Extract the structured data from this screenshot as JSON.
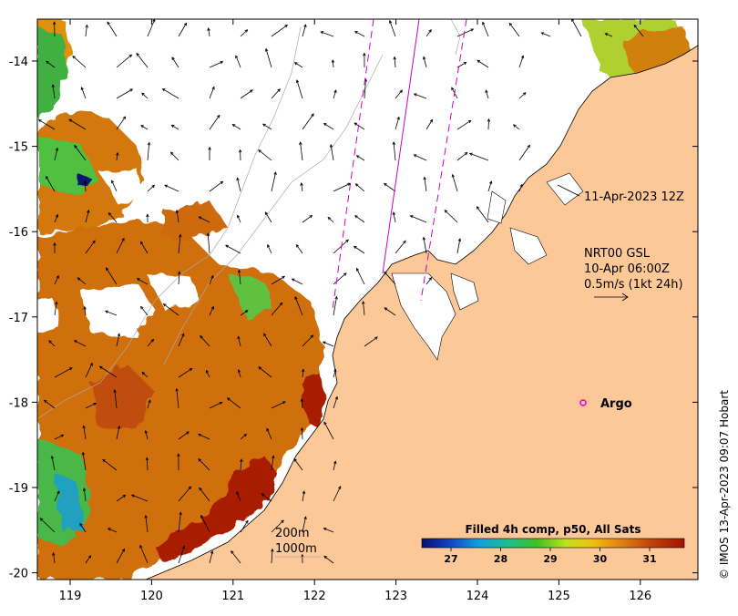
{
  "map": {
    "lon_ticks": [
      "119",
      "120",
      "121",
      "122",
      "123",
      "124",
      "125",
      "126"
    ],
    "lat_ticks": [
      "-14",
      "-15",
      "-16",
      "-17",
      "-18",
      "-19",
      "-20"
    ],
    "colors": {
      "land": "#fcc898",
      "ocean_nodata": "#ffffff",
      "sst_warm": "#c85a08",
      "sst_hot": "#a01e02",
      "sst_mid": "#e08a10",
      "sst_cool": "#3cb43c",
      "track": "#cc00cc"
    }
  },
  "annotations": {
    "timestamp": "11-Apr-2023 12Z",
    "current_title": "NRT00 GSL",
    "current_time": "10-Apr 06:00Z",
    "current_scale": "0.5m/s (1kt 24h)",
    "argo_label": "Argo",
    "isobath_200": "200m",
    "isobath_1000": "1000m"
  },
  "colorbar": {
    "title": "Filled 4h comp, p50, All Sats",
    "ticks": [
      "27",
      "28",
      "29",
      "30",
      "31"
    ],
    "stops": [
      "#081070",
      "#1040c0",
      "#10a0e0",
      "#20c080",
      "#40c020",
      "#c0e020",
      "#f0c010",
      "#e08010",
      "#c04008",
      "#a01402"
    ]
  },
  "credit": "© IMOS 13-Apr-2023 09:07 Hobart"
}
